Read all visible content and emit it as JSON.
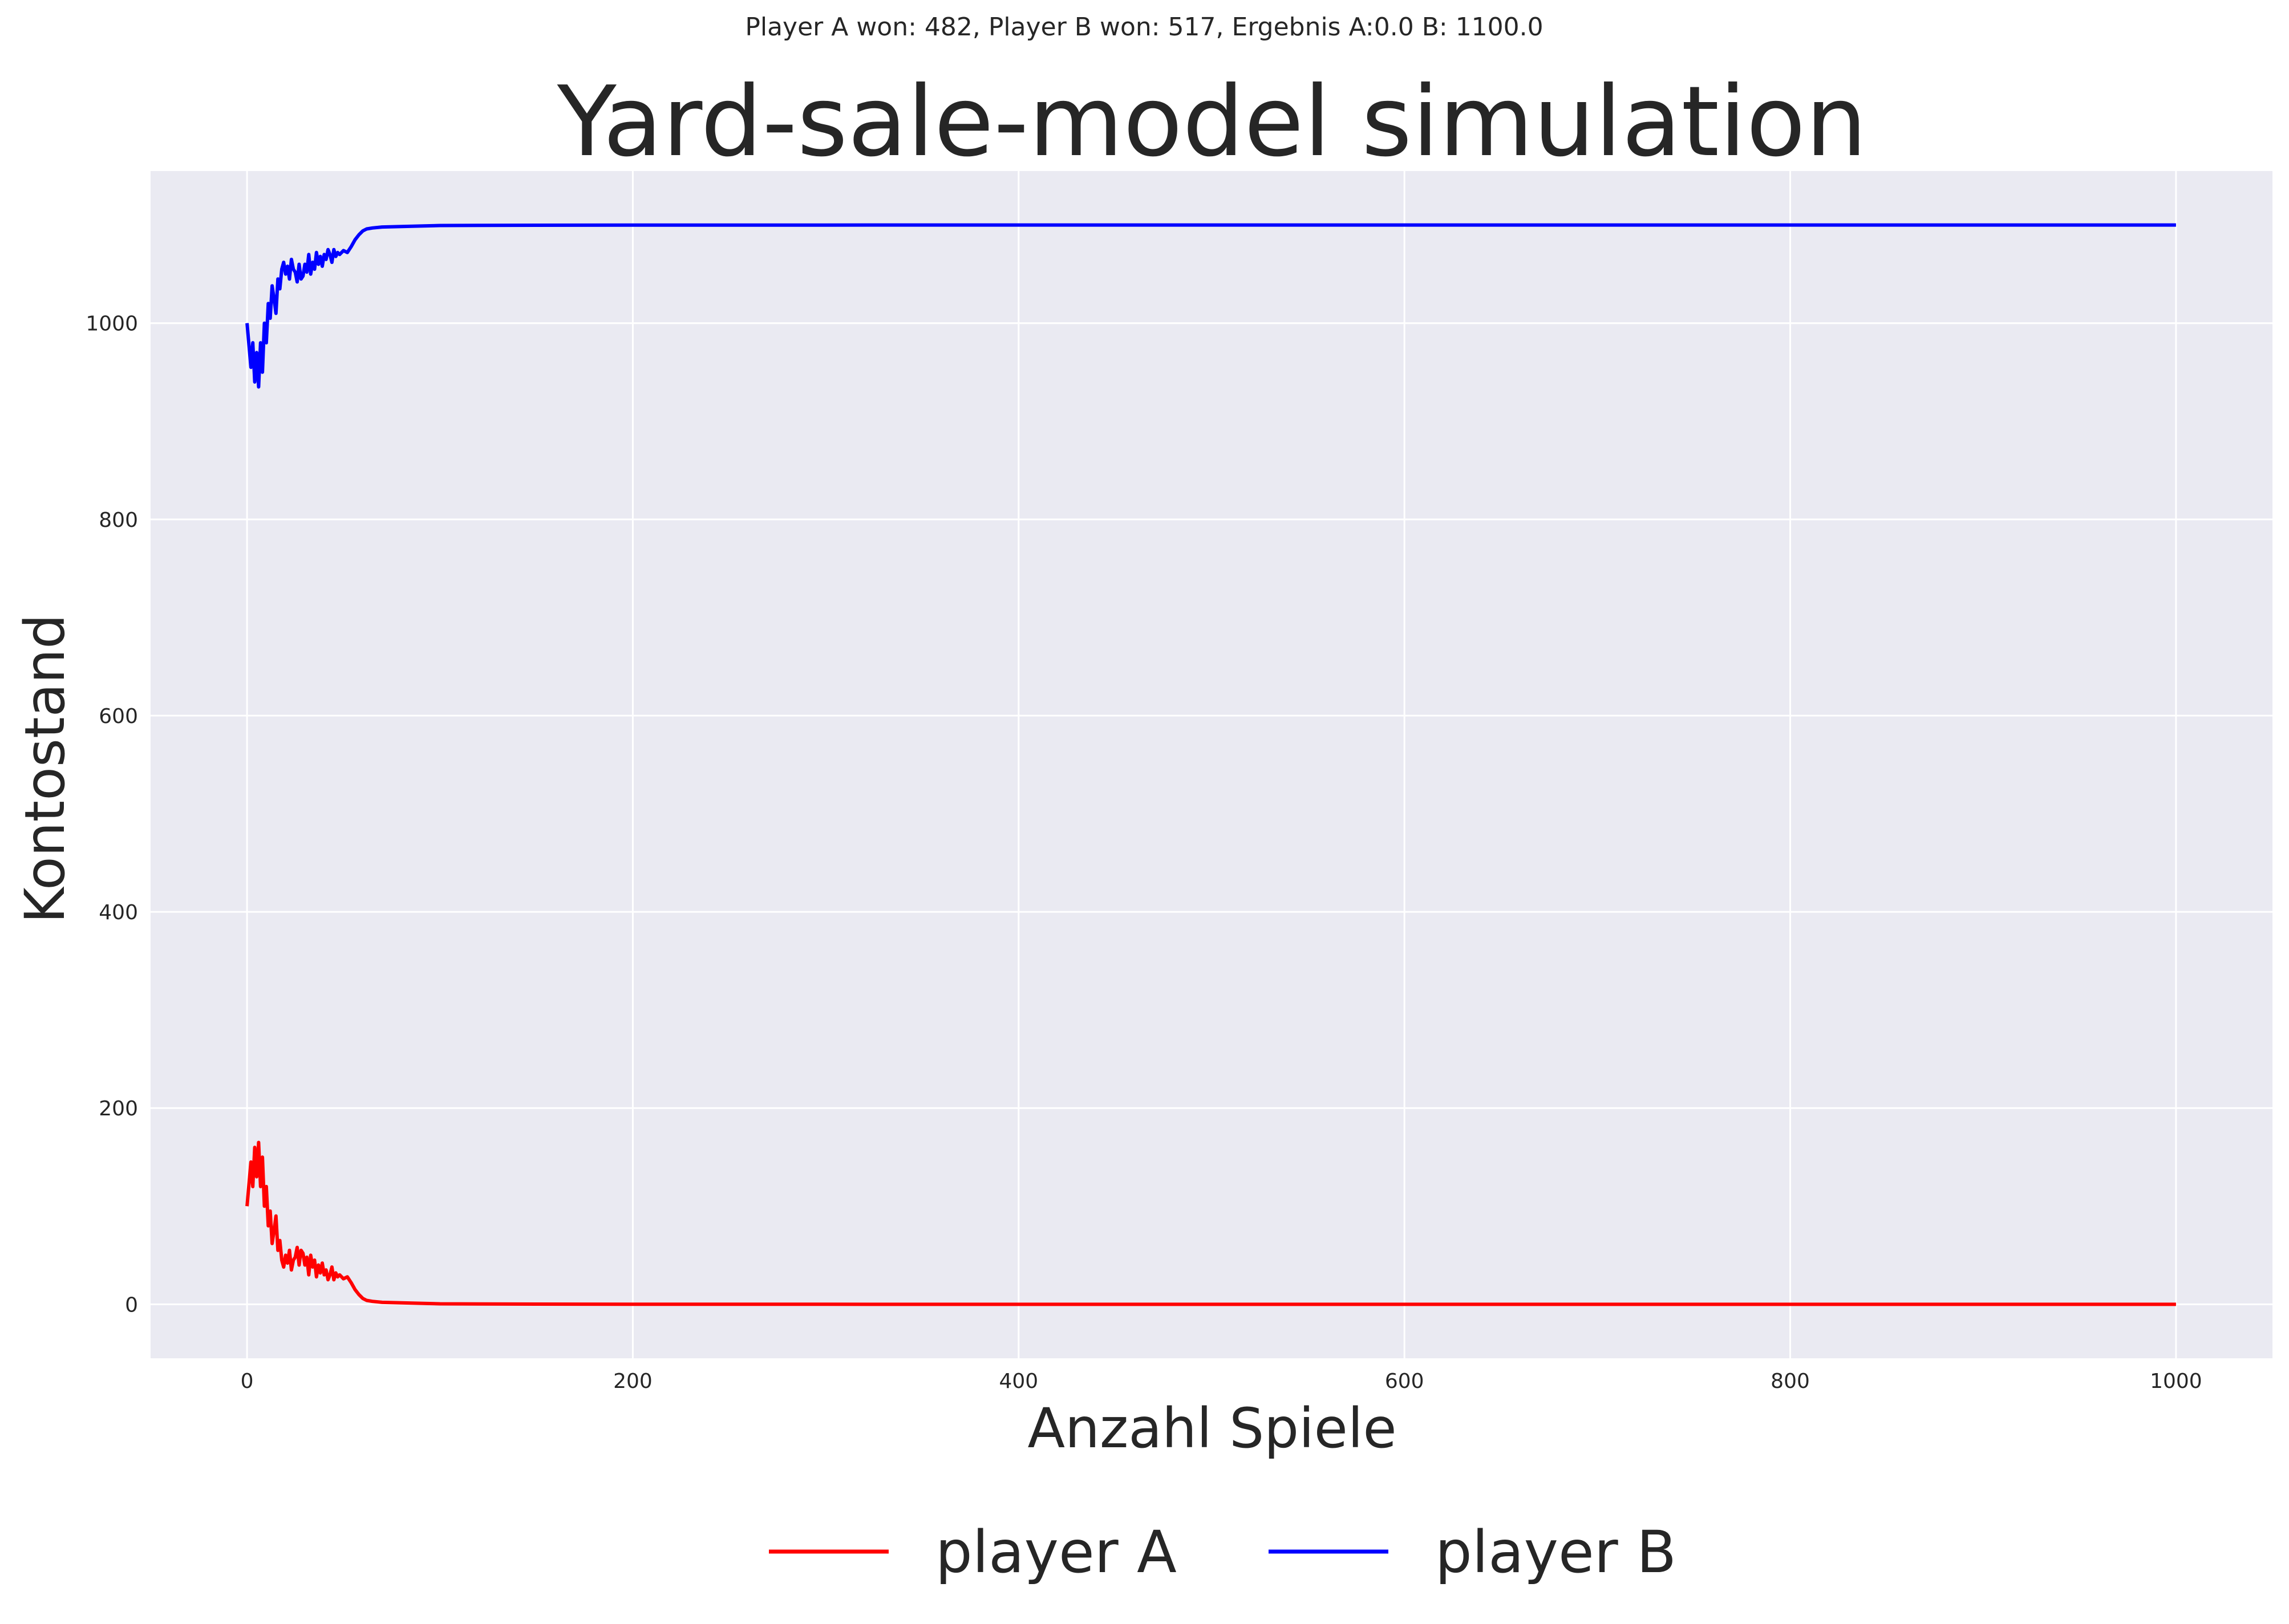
{
  "chart_data": {
    "type": "line",
    "suptitle": "Player A won: 482, Player B won: 517, Ergebnis A:0.0 B: 1100.0",
    "title": "Yard-sale-model simulation",
    "xlabel": "Anzahl Spiele",
    "ylabel": "Kontostand",
    "xlim": [
      -50,
      1050
    ],
    "ylim": [
      -55,
      1155
    ],
    "xticks": [
      0,
      200,
      400,
      600,
      800,
      1000
    ],
    "xtick_labels": [
      "0",
      "200",
      "400",
      "600",
      "800",
      "1000"
    ],
    "yticks": [
      0,
      200,
      400,
      600,
      800,
      1000
    ],
    "ytick_labels": [
      "0",
      "200",
      "400",
      "600",
      "800",
      "1000"
    ],
    "grid": true,
    "legend_position": "bottom-center",
    "colors": {
      "background": "#eaeaf2",
      "grid": "#ffffff",
      "text": "#262626"
    },
    "series": [
      {
        "name": "player A",
        "color": "#ff0000",
        "x": [
          0,
          2,
          3,
          4,
          5,
          6,
          7,
          8,
          9,
          10,
          11,
          12,
          13,
          14,
          15,
          16,
          17,
          18,
          19,
          20,
          21,
          22,
          23,
          24,
          25,
          26,
          27,
          28,
          29,
          30,
          31,
          32,
          33,
          34,
          35,
          36,
          37,
          38,
          39,
          40,
          41,
          42,
          43,
          44,
          45,
          46,
          47,
          48,
          50,
          52,
          54,
          56,
          58,
          60,
          62,
          65,
          70,
          80,
          90,
          100,
          120,
          150,
          200,
          250,
          300,
          400,
          500,
          600,
          700,
          800,
          900,
          1000
        ],
        "y": [
          100,
          145,
          120,
          160,
          130,
          165,
          120,
          150,
          100,
          120,
          80,
          95,
          62,
          75,
          90,
          55,
          65,
          45,
          38,
          50,
          42,
          55,
          35,
          45,
          48,
          58,
          40,
          55,
          52,
          40,
          48,
          30,
          50,
          38,
          45,
          28,
          40,
          32,
          42,
          30,
          35,
          25,
          30,
          38,
          25,
          32,
          28,
          30,
          26,
          28,
          22,
          15,
          10,
          6,
          4,
          3,
          2,
          1.5,
          1,
          0.5,
          0.3,
          0.2,
          0.1,
          0.05,
          0.02,
          0,
          0,
          0,
          0,
          0,
          0,
          0
        ]
      },
      {
        "name": "player B",
        "color": "#0000ff",
        "x": [
          0,
          2,
          3,
          4,
          5,
          6,
          7,
          8,
          9,
          10,
          11,
          12,
          13,
          14,
          15,
          16,
          17,
          18,
          19,
          20,
          21,
          22,
          23,
          24,
          25,
          26,
          27,
          28,
          29,
          30,
          31,
          32,
          33,
          34,
          35,
          36,
          37,
          38,
          39,
          40,
          41,
          42,
          43,
          44,
          45,
          46,
          47,
          48,
          50,
          52,
          54,
          56,
          58,
          60,
          62,
          65,
          70,
          80,
          90,
          100,
          120,
          150,
          200,
          250,
          300,
          400,
          500,
          600,
          700,
          800,
          900,
          1000
        ],
        "y": [
          1000,
          955,
          980,
          940,
          970,
          935,
          980,
          950,
          1000,
          980,
          1020,
          1005,
          1038,
          1025,
          1010,
          1045,
          1035,
          1055,
          1062,
          1050,
          1058,
          1045,
          1065,
          1055,
          1052,
          1042,
          1060,
          1045,
          1048,
          1060,
          1052,
          1070,
          1050,
          1062,
          1055,
          1072,
          1060,
          1068,
          1058,
          1070,
          1065,
          1075,
          1070,
          1062,
          1075,
          1068,
          1072,
          1070,
          1074,
          1072,
          1078,
          1085,
          1090,
          1094,
          1096,
          1097,
          1098,
          1098.5,
          1099,
          1099.5,
          1099.7,
          1099.8,
          1099.9,
          1099.95,
          1099.98,
          1100,
          1100,
          1100,
          1100,
          1100,
          1100,
          1100
        ]
      }
    ]
  }
}
